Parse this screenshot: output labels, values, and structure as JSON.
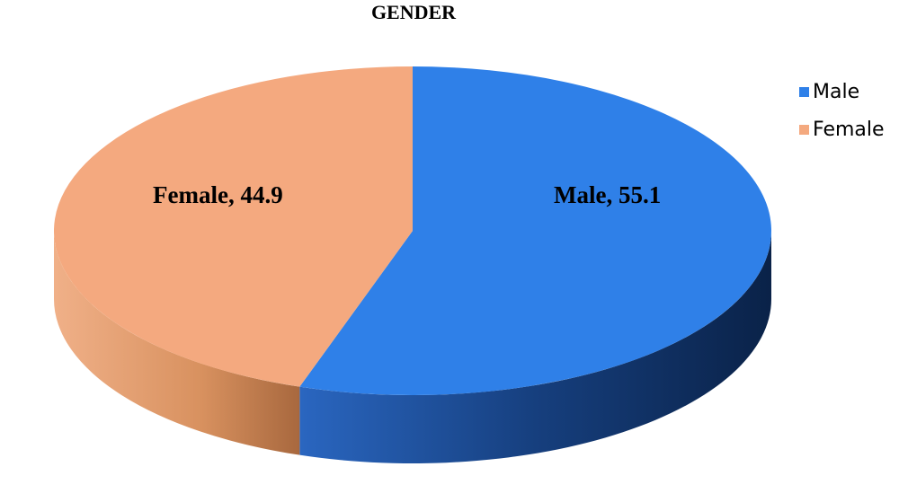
{
  "chart_data": {
    "type": "pie",
    "title": "GENDER",
    "categories": [
      "Male",
      "Female"
    ],
    "values": [
      55.1,
      44.9
    ],
    "value_labels": [
      "Male, 55.1",
      "Female, 44.9"
    ],
    "colors": [
      "#2f80e8",
      "#f4a97f"
    ],
    "legend": "right"
  }
}
